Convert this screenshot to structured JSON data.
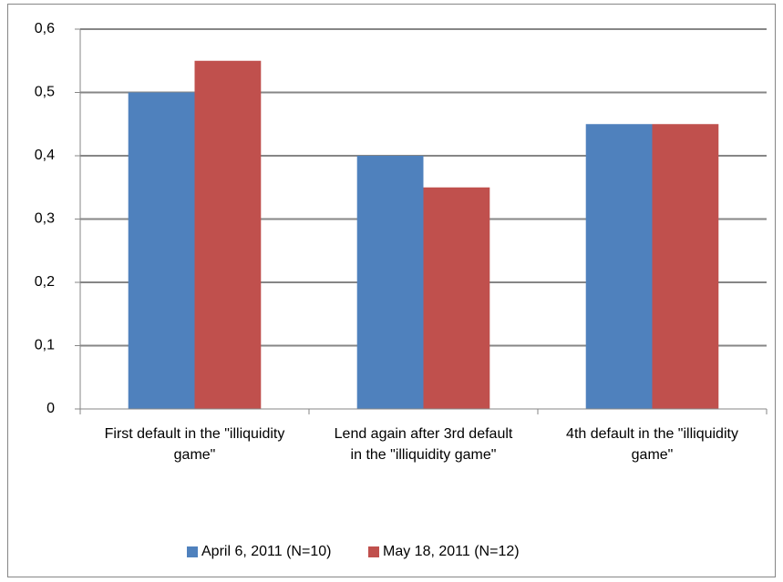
{
  "chart_data": {
    "type": "bar",
    "categories": [
      "First default in the \"illiquidity game\"",
      "Lend again after 3rd default in the \"illiquidity game\"",
      "4th default in the \"illiquidity game\""
    ],
    "series": [
      {
        "name": "April 6, 2011 (N=10)",
        "color": "#4f81bd",
        "values": [
          0.5,
          0.4,
          0.45
        ]
      },
      {
        "name": "May 18, 2011 (N=12)",
        "color": "#c0504d",
        "values": [
          0.55,
          0.35,
          0.45
        ]
      }
    ],
    "ylim": [
      0,
      0.6
    ],
    "yticks": [
      0,
      {
        "value": 0.1,
        "label": "0,1"
      },
      {
        "value": 0.2,
        "label": "0,2"
      },
      {
        "value": 0.3,
        "label": "0,3"
      },
      {
        "value": 0.4,
        "label": "0,4"
      },
      {
        "value": 0.5,
        "label": "0,5"
      },
      {
        "value": 0.6,
        "label": "0,6"
      }
    ],
    "grid": true,
    "legend": "bottom"
  }
}
